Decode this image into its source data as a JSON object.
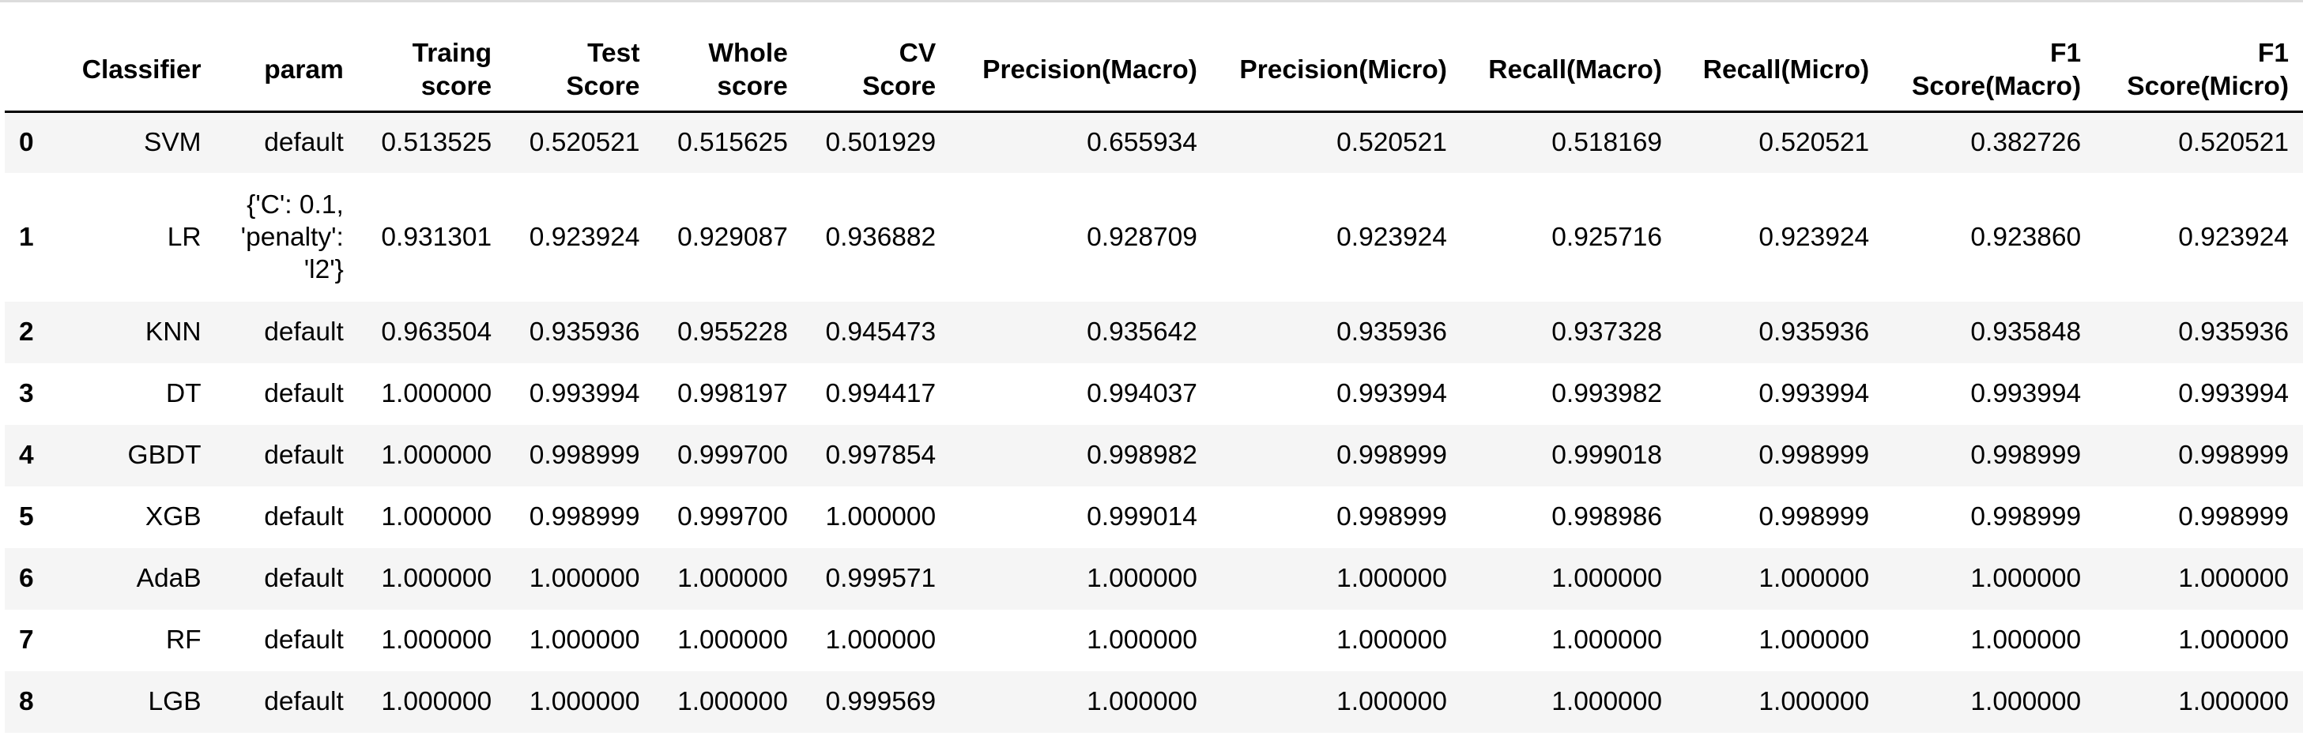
{
  "table": {
    "index_header": "",
    "columns": [
      [
        "Classifier"
      ],
      [
        "param"
      ],
      [
        "Traing",
        "score"
      ],
      [
        "Test",
        "Score"
      ],
      [
        "Whole",
        "score"
      ],
      [
        "CV",
        "Score"
      ],
      [
        "Precision(Macro)"
      ],
      [
        "Precision(Micro)"
      ],
      [
        "Recall(Macro)"
      ],
      [
        "Recall(Micro)"
      ],
      [
        "F1",
        "Score(Macro)"
      ],
      [
        "F1",
        "Score(Micro)"
      ]
    ],
    "rows": [
      {
        "index": "0",
        "cells": [
          "SVM",
          "default",
          "0.513525",
          "0.520521",
          "0.515625",
          "0.501929",
          "0.655934",
          "0.520521",
          "0.518169",
          "0.520521",
          "0.382726",
          "0.520521"
        ]
      },
      {
        "index": "1",
        "cells": [
          "LR",
          "{'C': 0.1,\n'penalty':\n'l2'}",
          "0.931301",
          "0.923924",
          "0.929087",
          "0.936882",
          "0.928709",
          "0.923924",
          "0.925716",
          "0.923924",
          "0.923860",
          "0.923924"
        ]
      },
      {
        "index": "2",
        "cells": [
          "KNN",
          "default",
          "0.963504",
          "0.935936",
          "0.955228",
          "0.945473",
          "0.935642",
          "0.935936",
          "0.937328",
          "0.935936",
          "0.935848",
          "0.935936"
        ]
      },
      {
        "index": "3",
        "cells": [
          "DT",
          "default",
          "1.000000",
          "0.993994",
          "0.998197",
          "0.994417",
          "0.994037",
          "0.993994",
          "0.993982",
          "0.993994",
          "0.993994",
          "0.993994"
        ]
      },
      {
        "index": "4",
        "cells": [
          "GBDT",
          "default",
          "1.000000",
          "0.998999",
          "0.999700",
          "0.997854",
          "0.998982",
          "0.998999",
          "0.999018",
          "0.998999",
          "0.998999",
          "0.998999"
        ]
      },
      {
        "index": "5",
        "cells": [
          "XGB",
          "default",
          "1.000000",
          "0.998999",
          "0.999700",
          "1.000000",
          "0.999014",
          "0.998999",
          "0.998986",
          "0.998999",
          "0.998999",
          "0.998999"
        ]
      },
      {
        "index": "6",
        "cells": [
          "AdaB",
          "default",
          "1.000000",
          "1.000000",
          "1.000000",
          "0.999571",
          "1.000000",
          "1.000000",
          "1.000000",
          "1.000000",
          "1.000000",
          "1.000000"
        ]
      },
      {
        "index": "7",
        "cells": [
          "RF",
          "default",
          "1.000000",
          "1.000000",
          "1.000000",
          "1.000000",
          "1.000000",
          "1.000000",
          "1.000000",
          "1.000000",
          "1.000000",
          "1.000000"
        ]
      },
      {
        "index": "8",
        "cells": [
          "LGB",
          "default",
          "1.000000",
          "1.000000",
          "1.000000",
          "0.999569",
          "1.000000",
          "1.000000",
          "1.000000",
          "1.000000",
          "1.000000",
          "1.000000"
        ]
      }
    ]
  }
}
